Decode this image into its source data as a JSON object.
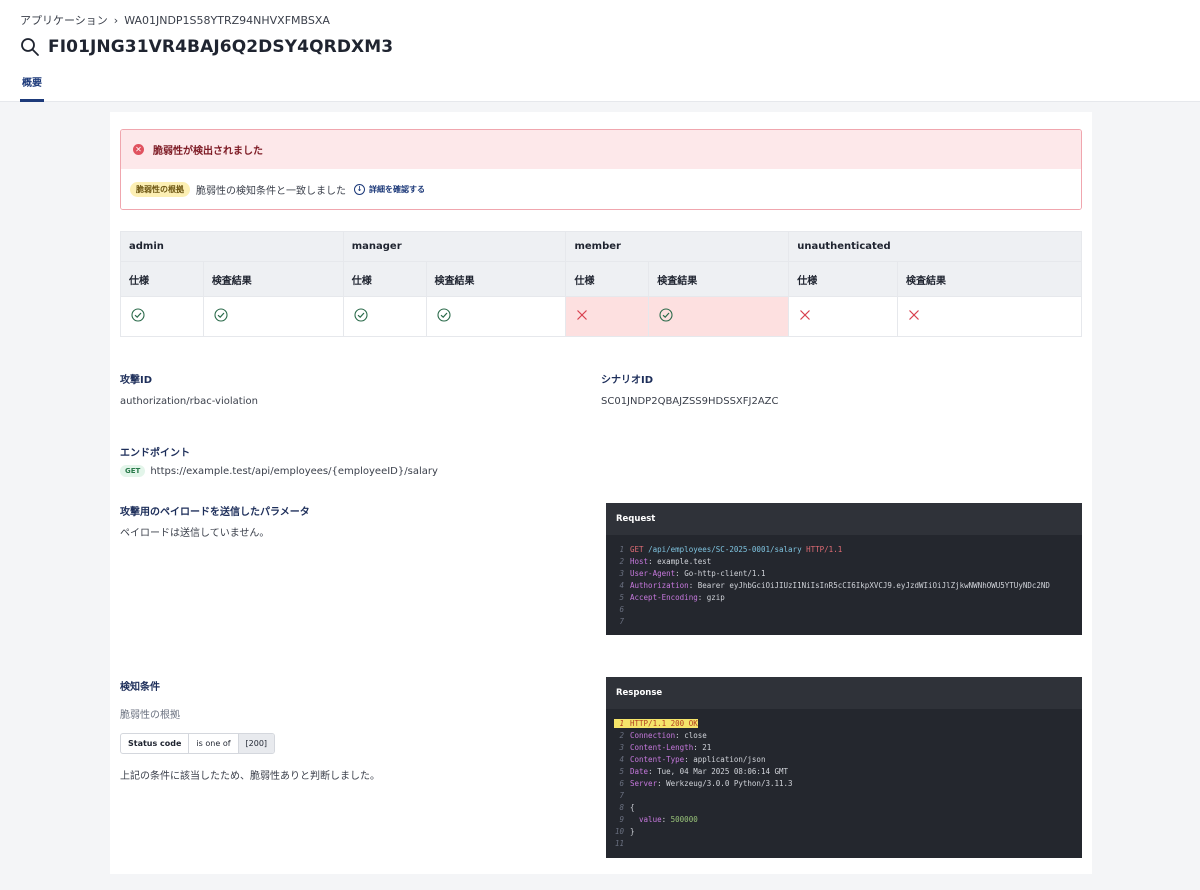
{
  "breadcrumb": {
    "root": "アプリケーション",
    "current": "WA01JNDP1S58YTRZ94NHVXFMBSXA"
  },
  "page": {
    "title": "FI01JNG31VR4BAJ6Q2DSY4QRDXM3",
    "tab": "概要"
  },
  "alert": {
    "title": "脆弱性が検出されました",
    "badge": "脆弱性の根拠",
    "message": "脆弱性の検知条件と一致しました",
    "link": "詳細を確認する"
  },
  "roles_table": {
    "spec_label": "仕様",
    "result_label": "検査結果",
    "roles": [
      {
        "name": "admin",
        "spec": "ok",
        "result": "ok"
      },
      {
        "name": "manager",
        "spec": "ok",
        "result": "ok"
      },
      {
        "name": "member",
        "spec": "ng",
        "result": "ok"
      },
      {
        "name": "unauthenticated",
        "spec": "ng",
        "result": "ng"
      }
    ]
  },
  "attack": {
    "label": "攻撃ID",
    "value": "authorization/rbac-violation"
  },
  "scenario": {
    "label": "シナリオID",
    "value": "SC01JNDP2QBAJZSS9HDSSXFJ2AZC"
  },
  "endpoint": {
    "label": "エンドポイント",
    "method": "GET",
    "url": "https://example.test/api/employees/{employeeID}/salary"
  },
  "payload": {
    "label": "攻撃用のペイロードを送信したパラメータ",
    "value": "ペイロードは送信していません。"
  },
  "detection": {
    "label": "検知条件",
    "sub": "脆弱性の根拠",
    "key": "Status code",
    "op": "is one of",
    "val": "[200]",
    "conclusion": "上記の条件に該当したため、脆弱性ありと判断しました。"
  },
  "request": {
    "title": "Request",
    "method": "GET",
    "path": "/api/employees/SC-2025-0001/salary",
    "proto": "HTTP/1.1",
    "headers": [
      {
        "k": "Host",
        "v": "example.test"
      },
      {
        "k": "User-Agent",
        "v": "Go-http-client/1.1"
      },
      {
        "k": "Authorization",
        "v": "Bearer eyJhbGciOiJIUzI1NiIsInR5cCI6IkpXVCJ9.eyJzdWIiOiJlZjkwNWNhOWU5YTUyNDc2ND"
      },
      {
        "k": "Accept-Encoding",
        "v": "gzip"
      }
    ]
  },
  "response": {
    "title": "Response",
    "status": "HTTP/1.1 200 OK",
    "headers": [
      {
        "k": "Connection",
        "v": "close"
      },
      {
        "k": "Content-Length",
        "v": "21"
      },
      {
        "k": "Content-Type",
        "v": "application/json"
      },
      {
        "k": "Date",
        "v": "Tue, 04 Mar 2025 08:06:14 GMT"
      },
      {
        "k": "Server",
        "v": "Werkzeug/3.0.0 Python/3.11.3"
      }
    ],
    "body_open": "{",
    "body_key": "value",
    "body_val": "500000",
    "body_close": "}"
  }
}
